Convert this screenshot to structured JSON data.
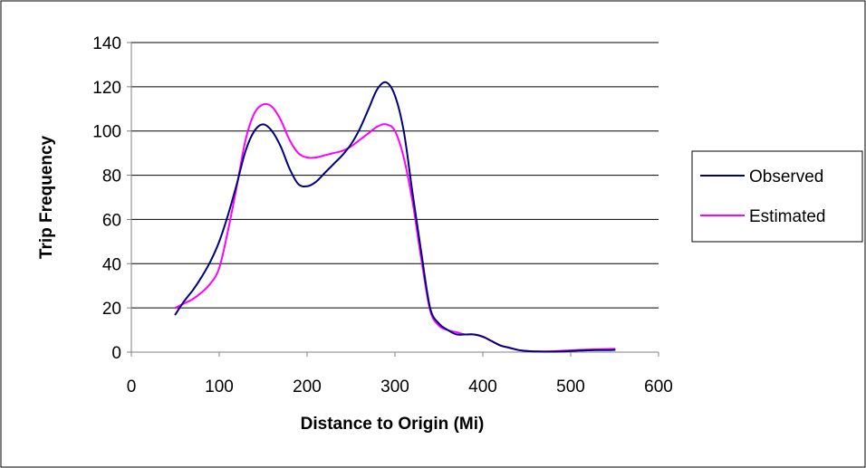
{
  "chart_data": {
    "type": "line",
    "xlabel": "Distance to Origin (Mi)",
    "ylabel": "Trip Frequency",
    "xlim": [
      0,
      600
    ],
    "ylim": [
      0,
      140
    ],
    "xticks": [
      "0",
      "100",
      "200",
      "300",
      "400",
      "500",
      "600"
    ],
    "yticks": [
      "0",
      "20",
      "40",
      "60",
      "80",
      "100",
      "120",
      "140"
    ],
    "grid": "horizontal",
    "legend_position": "right",
    "series": [
      {
        "name": "Observed",
        "color": "#000080",
        "x": [
          50,
          60,
          70,
          80,
          90,
          100,
          110,
          120,
          130,
          140,
          150,
          160,
          170,
          180,
          190,
          200,
          210,
          220,
          230,
          240,
          250,
          260,
          270,
          280,
          290,
          300,
          310,
          320,
          330,
          340,
          350,
          360,
          370,
          380,
          390,
          400,
          410,
          420,
          430,
          440,
          450,
          460,
          470,
          480,
          490,
          500,
          510,
          520,
          530,
          540,
          550
        ],
        "y": [
          17,
          23,
          28,
          34,
          41,
          50,
          62,
          76,
          91,
          100,
          103,
          100,
          93,
          83,
          76,
          75,
          77,
          81,
          85,
          89,
          94,
          101,
          110,
          119,
          122,
          116,
          100,
          72,
          45,
          20,
          13,
          10,
          8,
          8,
          8,
          7,
          5,
          3,
          2,
          1,
          0.5,
          0.3,
          0.2,
          0.2,
          0.3,
          0.5,
          0.7,
          0.8,
          0.9,
          0.9,
          1
        ]
      },
      {
        "name": "Estimated",
        "color": "#ff00ff",
        "x": [
          50,
          60,
          70,
          80,
          90,
          100,
          110,
          120,
          130,
          140,
          150,
          160,
          170,
          180,
          190,
          200,
          210,
          220,
          230,
          240,
          250,
          260,
          270,
          280,
          290,
          300,
          310,
          320,
          330,
          340,
          350,
          360,
          370,
          380,
          390,
          400,
          410,
          420,
          430,
          440,
          450,
          460,
          470,
          480,
          490,
          500,
          510,
          520,
          530,
          540,
          550
        ],
        "y": [
          20,
          22,
          24,
          27,
          31,
          38,
          55,
          75,
          96,
          108,
          112,
          111,
          105,
          96,
          90,
          88,
          88,
          89,
          90,
          91,
          93,
          96,
          99,
          102,
          103,
          100,
          88,
          68,
          42,
          19,
          12,
          10,
          9,
          8,
          8,
          7,
          5,
          3,
          2,
          1,
          0.5,
          0.3,
          0.3,
          0.4,
          0.6,
          0.8,
          1,
          1.2,
          1.3,
          1.4,
          1.5
        ]
      }
    ]
  }
}
